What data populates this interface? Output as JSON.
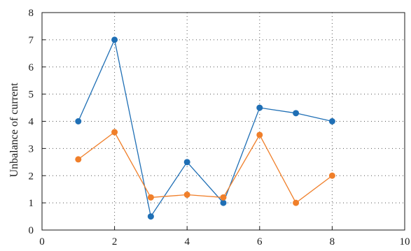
{
  "chart_data": {
    "type": "line",
    "title": "",
    "xlabel": "",
    "ylabel": "Unbalance of current",
    "xlim": [
      0,
      10
    ],
    "ylim": [
      0,
      8
    ],
    "xticks": [
      "0",
      "2",
      "4",
      "6",
      "8",
      "10"
    ],
    "yticks": [
      "0",
      "1",
      "2",
      "3",
      "4",
      "5",
      "6",
      "7",
      "8"
    ],
    "grid": "dotted",
    "series": [
      {
        "color": "#1f6fb5",
        "x": [
          1,
          2,
          3,
          4,
          5,
          6,
          7,
          8
        ],
        "y": [
          4.0,
          7.0,
          0.5,
          2.5,
          1.0,
          4.5,
          4.3,
          4.0
        ]
      },
      {
        "color": "#f07f2a",
        "x": [
          1,
          2,
          3,
          4,
          5,
          6,
          7,
          8
        ],
        "y": [
          2.6,
          3.6,
          1.2,
          1.3,
          1.2,
          3.5,
          1.0,
          2.0
        ]
      }
    ]
  }
}
